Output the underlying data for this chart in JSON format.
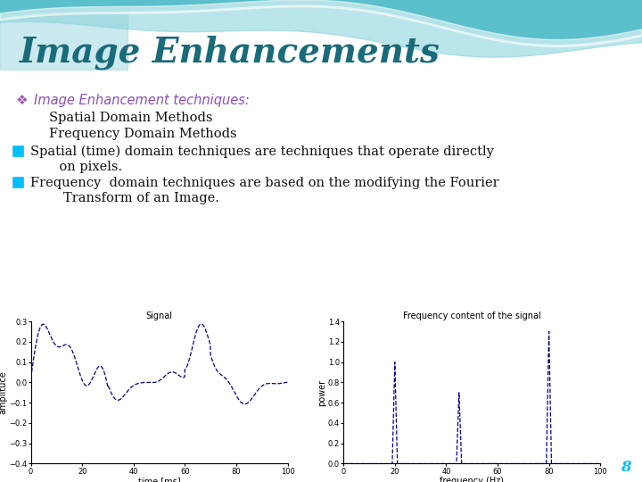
{
  "title": "Image Enhancements",
  "title_color": "#1a6b7a",
  "title_fontsize": 28,
  "bg_color": "#ffffff",
  "bullet1_color": "#8B4FBF",
  "bullet1_symbol": "❖",
  "bullet1_text": "Image Enhancement techniques:",
  "sub1": "Spatial Domain Methods",
  "sub2": "Frequency Domain Methods",
  "q1_line1": "Spatial (time) domain techniques are techniques that operate directly",
  "q1_line2": "       on pixels.",
  "q2_line1": "Frequency  domain techniques are based on the modifying the Fourier",
  "q2_line2": "        Transform of an Image.",
  "plot1_title": "Signal",
  "plot1_xlabel": "time [ms]",
  "plot1_ylabel": "amplituce",
  "plot2_title": "Frequency content of the signal",
  "plot2_xlabel": "frequency (Hz)",
  "plot2_ylabel": "power",
  "line_color": "#00008B",
  "page_number": "8",
  "page_num_color": "#00BFFF",
  "checkbox_color": "#00BFFF"
}
